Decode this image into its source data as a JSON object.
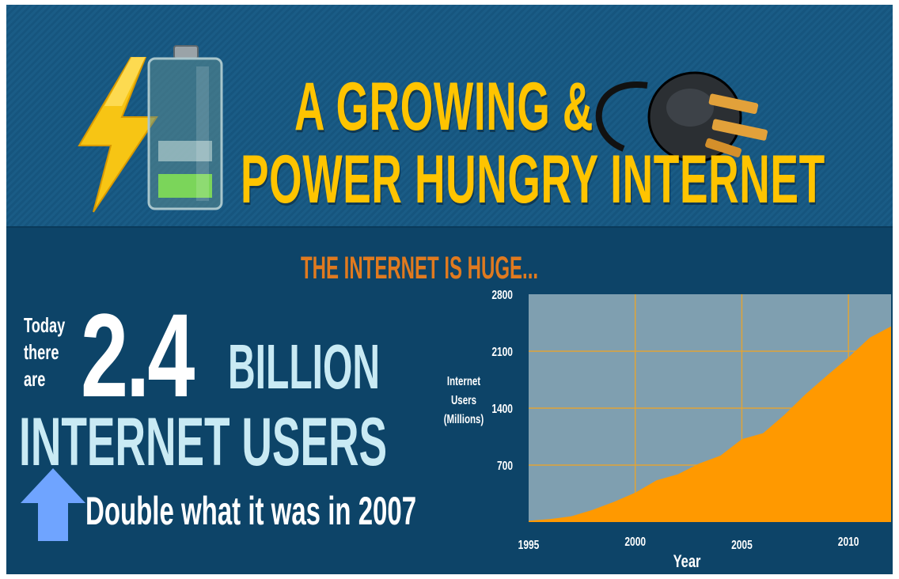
{
  "header": {
    "title_line1": "A GROWING &",
    "title_line2": "POWER HUNGRY INTERNET",
    "title_color": "#ffc400",
    "icons": [
      "lightning-bolt-icon",
      "battery-icon",
      "power-plug-icon"
    ]
  },
  "section": {
    "subtitle": "THE INTERNET IS HUGE...",
    "subtitle_color": "#e07a1f"
  },
  "stat": {
    "today_line1": "Today",
    "today_line2": "there",
    "today_line3": "are",
    "number": "2.4",
    "unit": "BILLION",
    "line2": "INTERNET USERS",
    "note": "Double what it was in 2007",
    "arrow_icon": "up-arrow-icon",
    "arrow_color": "#6fa4ff"
  },
  "chart_data": {
    "type": "area",
    "title": "",
    "xlabel": "Year",
    "ylabel_lines": [
      "Internet",
      "Users",
      "(Millions)"
    ],
    "x_ticks": [
      1995,
      2000,
      2005,
      2010
    ],
    "y_ticks": [
      700,
      1400,
      2100,
      2800
    ],
    "xlim": [
      1995,
      2012
    ],
    "ylim": [
      0,
      2800
    ],
    "grid": true,
    "fill_color": "#ff9900",
    "plot_bg": "#7f9fb0",
    "grid_color": "#e0a437",
    "series": [
      {
        "x": [
          1995,
          1996,
          1997,
          1998,
          1999,
          2000,
          2001,
          2002,
          2003,
          2004,
          2005,
          2006,
          2007,
          2008,
          2009,
          2010,
          2011,
          2012
        ],
        "values": [
          16,
          36,
          70,
          150,
          248,
          361,
          513,
          587,
          719,
          817,
          1018,
          1093,
          1319,
          1574,
          1802,
          2024,
          2267,
          2405
        ]
      }
    ]
  }
}
